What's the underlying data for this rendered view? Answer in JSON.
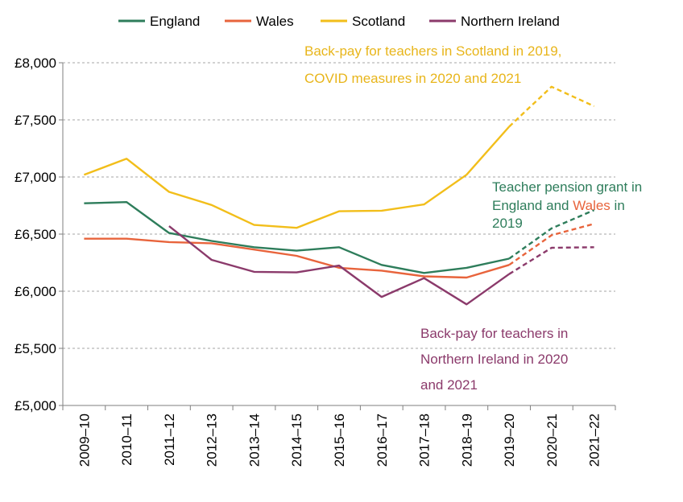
{
  "chart_data": {
    "type": "line",
    "categories": [
      "2009–10",
      "2010–11",
      "2011–12",
      "2012–13",
      "2013–14",
      "2014–15",
      "2015–16",
      "2016–17",
      "2017–18",
      "2018–19",
      "2019–20",
      "2020–21",
      "2021–22"
    ],
    "ylim": [
      5000,
      8000
    ],
    "yticks": [
      5000,
      5500,
      6000,
      6500,
      7000,
      7500,
      8000
    ],
    "ytick_labels": [
      "£5,000",
      "£5,500",
      "£6,000",
      "£6,500",
      "£7,000",
      "£7,500",
      "£8,000"
    ],
    "grid": "horizontal dashed",
    "legend": "top",
    "dashed_from_index": 10,
    "series": [
      {
        "name": "England",
        "color": "#2E7D5B",
        "values": [
          6770,
          6780,
          6510,
          6440,
          6385,
          6355,
          6385,
          6230,
          6160,
          6205,
          6285,
          6550,
          6710
        ]
      },
      {
        "name": "Wales",
        "color": "#E8643C",
        "values": [
          6460,
          6460,
          6430,
          6420,
          6365,
          6310,
          6205,
          6180,
          6130,
          6120,
          6230,
          6490,
          6590
        ]
      },
      {
        "name": "Scotland",
        "color": "#F2BE1A",
        "values": [
          7020,
          7160,
          6870,
          6755,
          6580,
          6555,
          6700,
          6705,
          6760,
          7020,
          7440,
          7790,
          7620
        ]
      },
      {
        "name": "Northern Ireland",
        "color": "#8B3A6B",
        "values": [
          null,
          null,
          6570,
          6275,
          6170,
          6165,
          6225,
          5950,
          6115,
          5885,
          6150,
          6380,
          6385
        ]
      }
    ],
    "annotations": {
      "scotland": {
        "lines": [
          "Back-pay for teachers in Scotland in 2019,",
          "COVID measures in 2020 and 2021"
        ]
      },
      "pension": {
        "line1": "Teacher pension grant in",
        "line2_a": "England and ",
        "line2_b": "Wales",
        "line2_c": " in",
        "line3": "2019"
      },
      "ni": {
        "lines": [
          "Back-pay for teachers in",
          "Northern Ireland in 2020",
          "and 2021"
        ]
      }
    }
  }
}
